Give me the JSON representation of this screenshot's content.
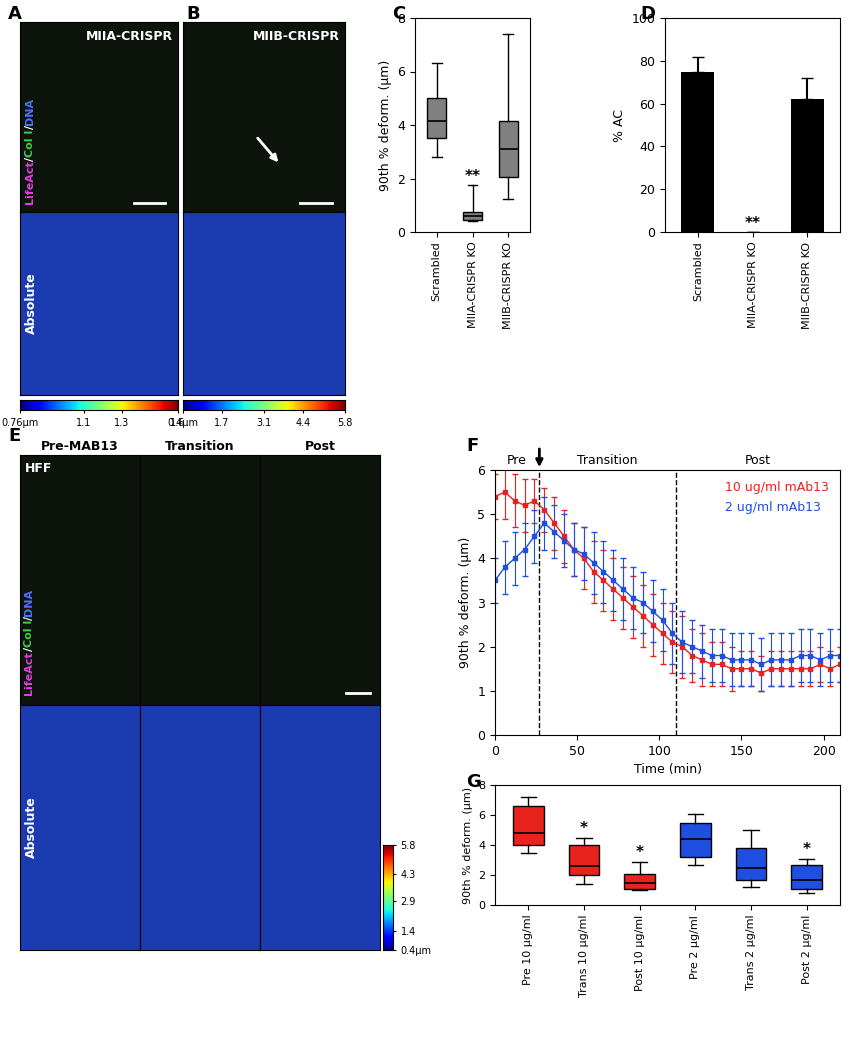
{
  "chart_data": [
    {
      "panel": "A",
      "type": "image",
      "title": "MIIA-CRISPR",
      "channel_label": [
        "LifeAct",
        "/",
        "Col I",
        "/",
        "DNA"
      ],
      "channel_colors": [
        "#e040e0",
        "#ffffff",
        "#40d040",
        "#ffffff",
        "#5070ff"
      ],
      "map_label": "Absolute",
      "colorbar": {
        "range": [
          0.76,
          1.6
        ],
        "ticks": [
          {
            "value": 0.76,
            "label": "0.76µm"
          },
          1.1,
          1.3,
          1.6
        ]
      }
    },
    {
      "panel": "B",
      "type": "image",
      "title": "MIIB-CRISPR",
      "colorbar": {
        "range": [
          0.4,
          5.8
        ],
        "ticks": [
          {
            "value": 0.4,
            "label": "0.4µm"
          },
          1.7,
          3.1,
          4.4,
          5.8
        ]
      }
    },
    {
      "panel": "C",
      "type": "box",
      "ylabel": "90th % deform. (µm)",
      "categories": [
        "Scrambled",
        "MIIA-CRISPR KO",
        "MIIB-CRISPR KO"
      ],
      "boxes": [
        {
          "whislo": 2.8,
          "q1": 3.5,
          "median": 4.15,
          "q3": 5.0,
          "whishi": 6.3
        },
        {
          "whislo": 0.4,
          "q1": 0.45,
          "median": 0.6,
          "q3": 0.75,
          "whishi": 1.75
        },
        {
          "whislo": 1.25,
          "q1": 2.05,
          "median": 3.1,
          "q3": 4.15,
          "whishi": 7.4
        }
      ],
      "colors": [
        "#808080",
        "#808080",
        "#808080"
      ],
      "annotations": [
        {
          "category": "MIIA-CRISPR KO",
          "text": "**"
        }
      ],
      "ylim": [
        0,
        8
      ],
      "yticks": [
        0,
        2,
        4,
        6,
        8
      ]
    },
    {
      "panel": "D",
      "type": "bar",
      "ylabel": "% AC",
      "categories": [
        "Scrambled",
        "MIIA-CRISPR KO",
        "MIIB-CRISPR KO"
      ],
      "values": [
        75,
        0,
        62
      ],
      "errors": [
        7,
        0,
        10
      ],
      "color": "#000000",
      "annotations": [
        {
          "category": "MIIA-CRISPR KO",
          "text": "**"
        }
      ],
      "ylim": [
        0,
        100
      ],
      "yticks": [
        0,
        20,
        40,
        60,
        80,
        100
      ]
    },
    {
      "panel": "E",
      "type": "image",
      "columns": [
        "Pre-MAB13",
        "Transition",
        "Post"
      ],
      "cell_label": "HFF",
      "channel_label": [
        "LifeAct",
        "/",
        "Col I",
        "/",
        "DNA"
      ],
      "channel_colors": [
        "#e040e0",
        "#ffffff",
        "#40d040",
        "#ffffff",
        "#5070ff"
      ],
      "map_label": "Absolute",
      "colorbar": {
        "range": [
          0.4,
          5.8
        ],
        "ticks": [
          {
            "value": 0.4,
            "label": "0.4µm"
          },
          1.4,
          2.9,
          4.3,
          5.8
        ]
      }
    },
    {
      "panel": "F",
      "type": "line",
      "xlabel": "Time (min)",
      "ylabel": "90th % deform. (µm)",
      "x": [
        0,
        6,
        12,
        18,
        24,
        30,
        36,
        42,
        48,
        54,
        60,
        66,
        72,
        78,
        84,
        90,
        96,
        102,
        108,
        114,
        120,
        126,
        132,
        138,
        144,
        150,
        156,
        162,
        168,
        174,
        180,
        186,
        192,
        198,
        204,
        210
      ],
      "series": [
        {
          "name": "10 ug/ml mAb13",
          "color": "#e8231e",
          "marker": "s",
          "values": [
            5.4,
            5.5,
            5.3,
            5.2,
            5.3,
            5.1,
            4.8,
            4.5,
            4.2,
            4.0,
            3.7,
            3.5,
            3.3,
            3.1,
            2.9,
            2.7,
            2.5,
            2.3,
            2.1,
            2.0,
            1.8,
            1.7,
            1.6,
            1.6,
            1.5,
            1.5,
            1.5,
            1.4,
            1.5,
            1.5,
            1.5,
            1.5,
            1.5,
            1.6,
            1.5,
            1.6
          ],
          "errors": [
            0.5,
            0.6,
            0.6,
            0.6,
            0.5,
            0.5,
            0.6,
            0.6,
            0.6,
            0.7,
            0.7,
            0.7,
            0.7,
            0.7,
            0.7,
            0.7,
            0.7,
            0.7,
            0.7,
            0.7,
            0.6,
            0.6,
            0.5,
            0.5,
            0.5,
            0.4,
            0.4,
            0.4,
            0.4,
            0.4,
            0.4,
            0.4,
            0.4,
            0.4,
            0.4,
            0.4
          ]
        },
        {
          "name": "2 ug/ml mAb13",
          "color": "#1f4fe0",
          "marker": "s",
          "values": [
            3.5,
            3.8,
            4.0,
            4.2,
            4.5,
            4.8,
            4.6,
            4.4,
            4.2,
            4.1,
            3.9,
            3.7,
            3.5,
            3.3,
            3.1,
            3.0,
            2.8,
            2.6,
            2.3,
            2.1,
            2.0,
            1.9,
            1.8,
            1.8,
            1.7,
            1.7,
            1.7,
            1.6,
            1.7,
            1.7,
            1.7,
            1.8,
            1.8,
            1.7,
            1.8,
            1.8
          ],
          "errors": [
            0.5,
            0.6,
            0.6,
            0.6,
            0.6,
            0.6,
            0.6,
            0.6,
            0.6,
            0.6,
            0.7,
            0.7,
            0.7,
            0.7,
            0.7,
            0.7,
            0.7,
            0.7,
            0.7,
            0.7,
            0.6,
            0.6,
            0.6,
            0.6,
            0.6,
            0.6,
            0.6,
            0.6,
            0.6,
            0.6,
            0.6,
            0.6,
            0.6,
            0.6,
            0.6,
            0.6
          ]
        }
      ],
      "regions": [
        {
          "label": "Pre",
          "start": 0,
          "end": 27
        },
        {
          "label": "Transition",
          "start": 27,
          "end": 110
        },
        {
          "label": "Post",
          "start": 110,
          "end": 210
        }
      ],
      "vlines": [
        27,
        110
      ],
      "legend": "upper right",
      "xlim": [
        0,
        210
      ],
      "xticks": [
        0,
        50,
        100,
        150,
        200
      ],
      "ylim": [
        0,
        6
      ],
      "yticks": [
        0,
        1,
        2,
        3,
        4,
        5,
        6
      ]
    },
    {
      "panel": "G",
      "type": "box",
      "ylabel": "90th % deform. (µm)",
      "categories": [
        "Pre 10 µg/ml",
        "Trans 10 µg/ml",
        "Post 10 µg/ml",
        "Pre 2 µg/ml",
        "Trans 2 µg/ml",
        "Post 2 µg/ml"
      ],
      "boxes": [
        {
          "whislo": 3.5,
          "q1": 4.0,
          "median": 4.8,
          "q3": 6.6,
          "whishi": 7.2
        },
        {
          "whislo": 1.4,
          "q1": 2.0,
          "median": 2.6,
          "q3": 4.0,
          "whishi": 4.5
        },
        {
          "whislo": 1.0,
          "q1": 1.1,
          "median": 1.5,
          "q3": 2.1,
          "whishi": 2.9
        },
        {
          "whislo": 2.7,
          "q1": 3.2,
          "median": 4.4,
          "q3": 5.5,
          "whishi": 6.1
        },
        {
          "whislo": 1.2,
          "q1": 1.7,
          "median": 2.5,
          "q3": 3.8,
          "whishi": 5.0
        },
        {
          "whislo": 0.8,
          "q1": 1.1,
          "median": 1.7,
          "q3": 2.7,
          "whishi": 3.1
        }
      ],
      "colors": [
        "#e8231e",
        "#e8231e",
        "#e8231e",
        "#1f4fe0",
        "#1f4fe0",
        "#1f4fe0"
      ],
      "annotations": [
        {
          "category": "Trans 10 µg/ml",
          "text": "*"
        },
        {
          "category": "Post 10 µg/ml",
          "text": "*"
        },
        {
          "category": "Post 2 µg/ml",
          "text": "*"
        }
      ],
      "ylim": [
        0,
        8
      ],
      "yticks": [
        0,
        2,
        4,
        6,
        8
      ]
    }
  ]
}
